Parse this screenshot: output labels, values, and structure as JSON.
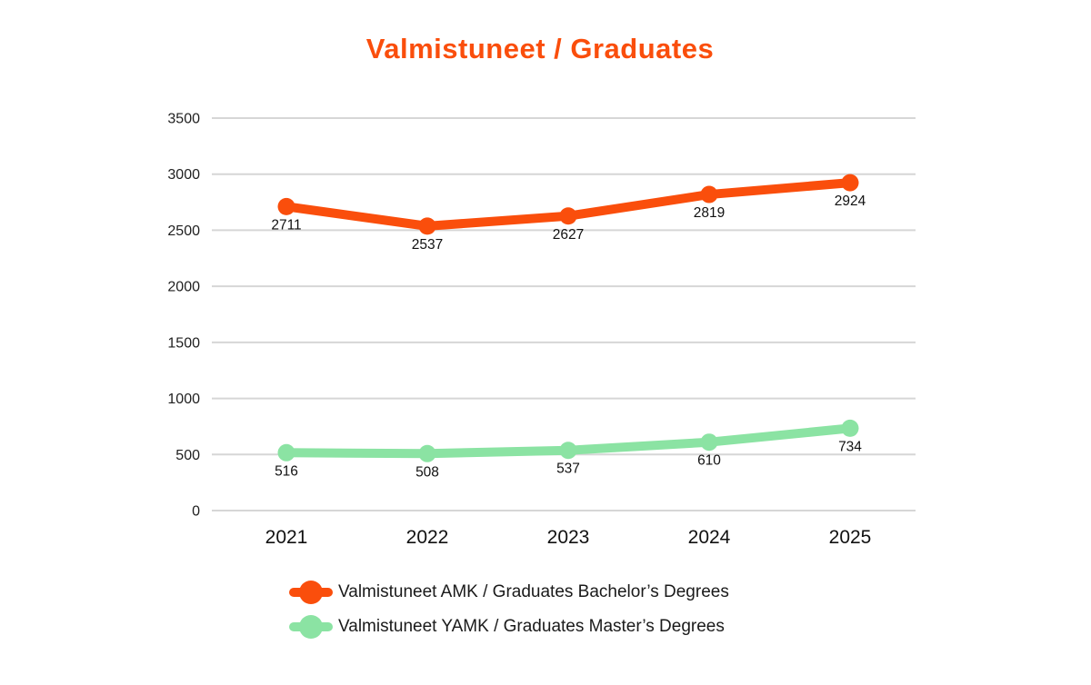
{
  "title": "Valmistuneet / Graduates",
  "colors": {
    "title": "#FA4E0C",
    "grid": "#D6D6D6",
    "axis_text": "#1f1f1f",
    "data_label": "#111111",
    "bachelor_orange": "#FA4E0C",
    "master_green": "#8BE3A3"
  },
  "chart_data": {
    "type": "line",
    "title": "Valmistuneet / Graduates",
    "categories": [
      "2021",
      "2022",
      "2023",
      "2024",
      "2025"
    ],
    "series": [
      {
        "name": "Valmistuneet AMK / Graduates Bachelor’s Degrees",
        "values": [
          2711,
          2537,
          2627,
          2819,
          2924
        ],
        "color": "#FA4E0C"
      },
      {
        "name": "Valmistuneet YAMK / Graduates Master’s Degrees",
        "values": [
          516,
          508,
          537,
          610,
          734
        ],
        "color": "#8BE3A3"
      }
    ],
    "yticks": [
      0,
      500,
      1000,
      1500,
      2000,
      2500,
      3000,
      3500
    ],
    "ylim": [
      0,
      3500
    ],
    "xlabel": "",
    "ylabel": "",
    "grid": true,
    "data_labels": true,
    "legend_position": "bottom-left"
  },
  "legend": {
    "items": [
      {
        "label": "Valmistuneet AMK / Graduates Bachelor’s Degrees"
      },
      {
        "label": "Valmistuneet YAMK / Graduates Master’s Degrees"
      }
    ]
  }
}
